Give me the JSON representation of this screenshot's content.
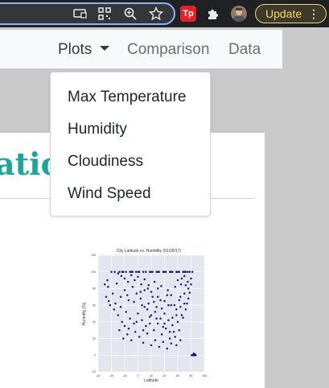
{
  "browser": {
    "update_label": "Update",
    "extension_label": "Tp",
    "icons": [
      "cast-icon",
      "qr-code-icon",
      "zoom-icon",
      "bookmark-star-icon",
      "extensions-puzzle-icon",
      "more-vert-icon"
    ]
  },
  "navbar": {
    "plots_label": "Plots",
    "comparison_label": "Comparison",
    "data_label": "Data"
  },
  "dropdown": {
    "items": [
      "Max Temperature",
      "Humidity",
      "Cloudiness",
      "Wind Speed"
    ]
  },
  "page": {
    "heading_fragment": "atio"
  },
  "colors": {
    "heading": "#1da59b",
    "update_accent": "#fdd663",
    "plot_points": "#1a237e",
    "plot_bg": "#e4e6ef"
  },
  "chart_data": {
    "type": "scatter",
    "title": "City Latitude vs. Humidity (01/26/17)",
    "xlabel": "Latitude",
    "ylabel": "Humidity (%)",
    "xlim": [
      -60,
      100
    ],
    "ylim": [
      -20,
      120
    ],
    "xticks": [
      "-60",
      "-40",
      "-20",
      "0",
      "20",
      "40",
      "60",
      "80",
      "100"
    ],
    "yticks": [
      "-20",
      "0",
      "20",
      "40",
      "60",
      "80",
      "100",
      "120"
    ],
    "points": [
      [
        -40,
        100
      ],
      [
        -35,
        100
      ],
      [
        -30,
        98
      ],
      [
        -28,
        100
      ],
      [
        -25,
        95
      ],
      [
        -22,
        100
      ],
      [
        -20,
        92
      ],
      [
        -18,
        100
      ],
      [
        -15,
        88
      ],
      [
        -12,
        100
      ],
      [
        -10,
        96
      ],
      [
        -8,
        100
      ],
      [
        -5,
        90
      ],
      [
        -3,
        100
      ],
      [
        0,
        94
      ],
      [
        2,
        100
      ],
      [
        5,
        85
      ],
      [
        8,
        100
      ],
      [
        10,
        91
      ],
      [
        12,
        100
      ],
      [
        15,
        80
      ],
      [
        18,
        100
      ],
      [
        20,
        76
      ],
      [
        22,
        100
      ],
      [
        25,
        88
      ],
      [
        28,
        100
      ],
      [
        30,
        70
      ],
      [
        32,
        100
      ],
      [
        35,
        83
      ],
      [
        38,
        100
      ],
      [
        40,
        65
      ],
      [
        42,
        100
      ],
      [
        45,
        78
      ],
      [
        48,
        100
      ],
      [
        50,
        72
      ],
      [
        52,
        100
      ],
      [
        55,
        60
      ],
      [
        58,
        100
      ],
      [
        60,
        90
      ],
      [
        62,
        100
      ],
      [
        65,
        85
      ],
      [
        68,
        100
      ],
      [
        70,
        95
      ],
      [
        72,
        100
      ],
      [
        75,
        88
      ],
      [
        78,
        100
      ],
      [
        80,
        92
      ],
      [
        82,
        100
      ],
      [
        -45,
        82
      ],
      [
        -38,
        74
      ],
      [
        -32,
        86
      ],
      [
        -26,
        70
      ],
      [
        -20,
        78
      ],
      [
        -14,
        66
      ],
      [
        -8,
        82
      ],
      [
        -2,
        74
      ],
      [
        4,
        68
      ],
      [
        10,
        78
      ],
      [
        16,
        62
      ],
      [
        22,
        70
      ],
      [
        28,
        58
      ],
      [
        34,
        66
      ],
      [
        40,
        50
      ],
      [
        46,
        60
      ],
      [
        52,
        45
      ],
      [
        58,
        55
      ],
      [
        64,
        70
      ],
      [
        70,
        62
      ],
      [
        76,
        80
      ],
      [
        -42,
        60
      ],
      [
        -36,
        55
      ],
      [
        -30,
        48
      ],
      [
        -24,
        40
      ],
      [
        -18,
        52
      ],
      [
        -12,
        44
      ],
      [
        -6,
        38
      ],
      [
        0,
        50
      ],
      [
        6,
        42
      ],
      [
        12,
        35
      ],
      [
        18,
        46
      ],
      [
        24,
        30
      ],
      [
        30,
        38
      ],
      [
        36,
        25
      ],
      [
        42,
        32
      ],
      [
        48,
        20
      ],
      [
        54,
        28
      ],
      [
        60,
        40
      ],
      [
        66,
        48
      ],
      [
        72,
        55
      ],
      [
        -28,
        30
      ],
      [
        -22,
        20
      ],
      [
        -16,
        25
      ],
      [
        -10,
        18
      ],
      [
        -4,
        28
      ],
      [
        2,
        22
      ],
      [
        8,
        15
      ],
      [
        14,
        26
      ],
      [
        20,
        12
      ],
      [
        26,
        18
      ],
      [
        32,
        10
      ],
      [
        38,
        16
      ],
      [
        44,
        8
      ],
      [
        50,
        14
      ],
      [
        56,
        22
      ],
      [
        62,
        30
      ],
      [
        68,
        45
      ],
      [
        74,
        62
      ],
      [
        78,
        75
      ],
      [
        81,
        0
      ],
      [
        83,
        0
      ],
      [
        85,
        0
      ],
      [
        87,
        0
      ],
      [
        84,
        2
      ],
      [
        86,
        1
      ],
      [
        -48,
        70
      ],
      [
        -46,
        90
      ],
      [
        -44,
        65
      ],
      [
        -50,
        85
      ],
      [
        -34,
        62
      ],
      [
        -26,
        58
      ],
      [
        6,
        60
      ],
      [
        14,
        55
      ],
      [
        20,
        48
      ],
      [
        26,
        52
      ],
      [
        34,
        44
      ],
      [
        40,
        38
      ],
      [
        46,
        42
      ],
      [
        52,
        36
      ],
      [
        58,
        48
      ],
      [
        64,
        58
      ],
      [
        70,
        74
      ],
      [
        76,
        68
      ],
      [
        80,
        85
      ],
      [
        -16,
        72
      ],
      [
        -6,
        64
      ],
      [
        4,
        76
      ],
      [
        10,
        58
      ],
      [
        16,
        84
      ],
      [
        24,
        64
      ],
      [
        30,
        80
      ],
      [
        36,
        56
      ],
      [
        44,
        72
      ],
      [
        50,
        60
      ],
      [
        56,
        82
      ],
      [
        62,
        66
      ],
      [
        66,
        92
      ],
      [
        72,
        84
      ],
      [
        -20,
        35
      ],
      [
        -14,
        32
      ],
      [
        -2,
        40
      ],
      [
        8,
        30
      ],
      [
        18,
        38
      ],
      [
        28,
        44
      ],
      [
        38,
        34
      ],
      [
        48,
        28
      ],
      [
        58,
        12
      ],
      [
        64,
        18
      ],
      [
        0,
        100
      ],
      [
        20,
        100
      ],
      [
        40,
        100
      ],
      [
        60,
        100
      ],
      [
        75,
        100
      ],
      [
        -24,
        100
      ],
      [
        -10,
        100
      ],
      [
        30,
        100
      ],
      [
        50,
        100
      ],
      [
        70,
        100
      ]
    ]
  }
}
